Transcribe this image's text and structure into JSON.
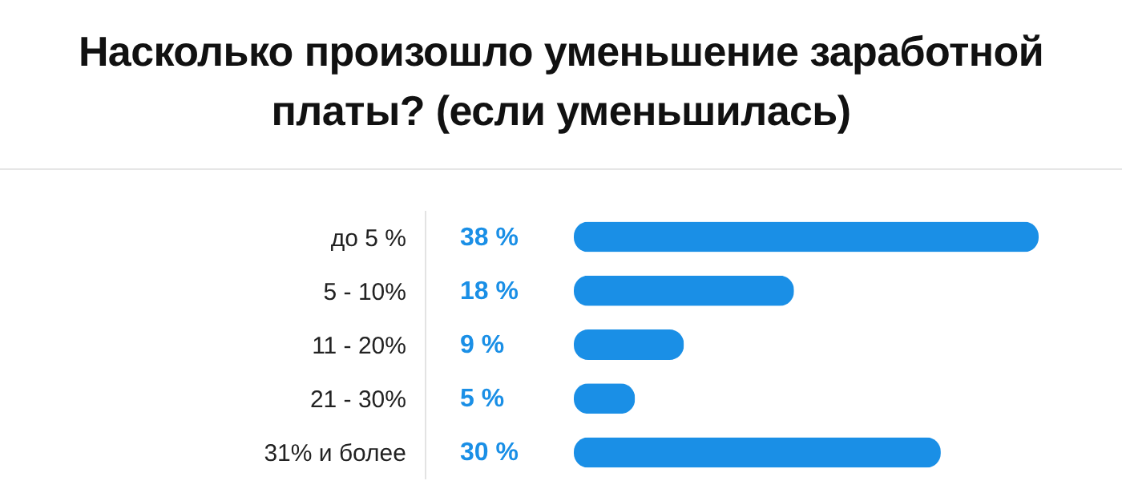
{
  "chart_data": {
    "type": "bar",
    "orientation": "horizontal",
    "title": "Насколько произошло уменьшение заработной платы? (если уменьшилась)",
    "categories": [
      "до 5 %",
      "5 - 10%",
      "11 - 20%",
      "21 - 30%",
      "31% и более"
    ],
    "values": [
      38,
      18,
      9,
      5,
      30
    ],
    "value_labels": [
      "38 %",
      "18 %",
      "9 %",
      "5 %",
      "30 %"
    ],
    "color": "#1a8fe6"
  }
}
